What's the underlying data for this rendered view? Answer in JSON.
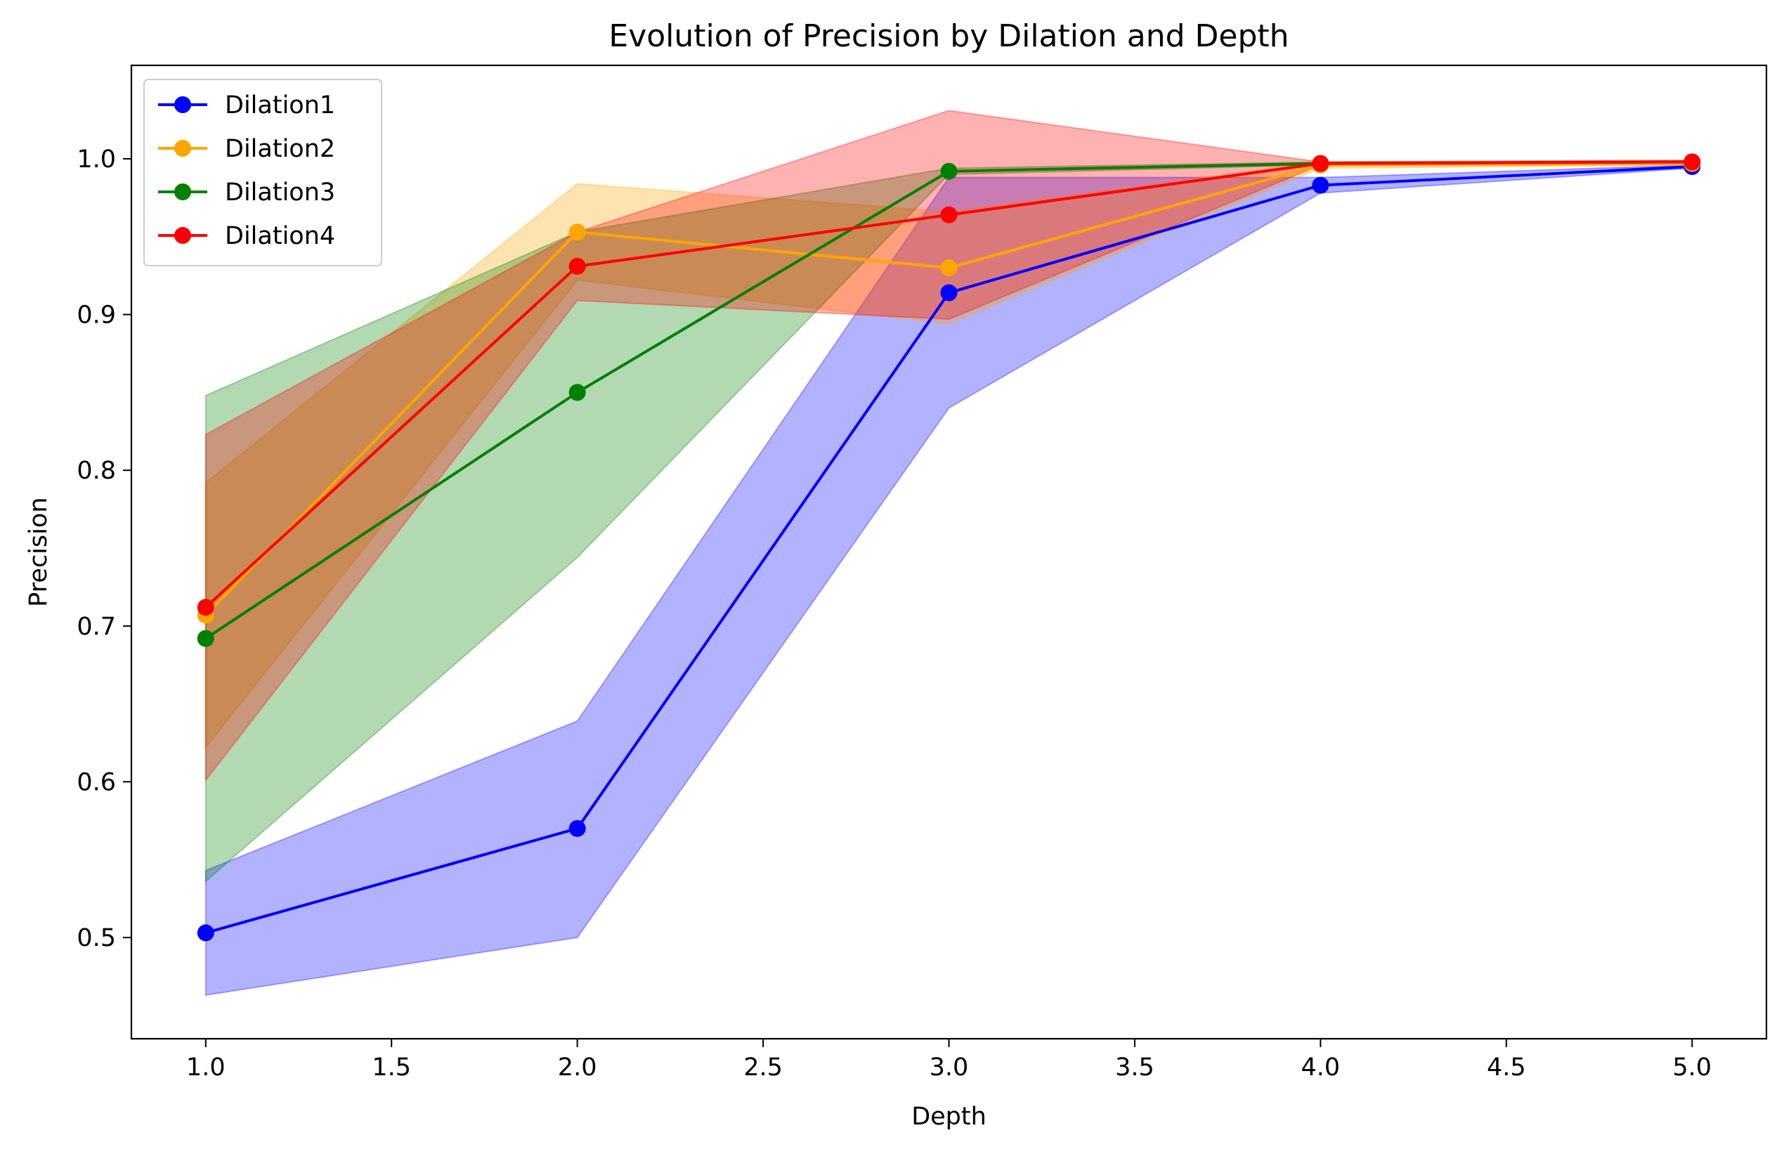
{
  "chart_data": {
    "type": "line",
    "title": "Evolution of Precision by Dilation and Depth",
    "xlabel": "Depth",
    "ylabel": "Precision",
    "xlim": [
      0.8,
      5.2
    ],
    "ylim": [
      0.435,
      1.06
    ],
    "xticks": [
      1.0,
      1.5,
      2.0,
      2.5,
      3.0,
      3.5,
      4.0,
      4.5,
      5.0
    ],
    "xtick_labels": [
      "1.0",
      "1.5",
      "2.0",
      "2.5",
      "3.0",
      "3.5",
      "4.0",
      "4.5",
      "5.0"
    ],
    "yticks": [
      0.5,
      0.6,
      0.7,
      0.8,
      0.9,
      1.0
    ],
    "ytick_labels": [
      "0.5",
      "0.6",
      "0.7",
      "0.8",
      "0.9",
      "1.0"
    ],
    "grid": false,
    "legend_position": "upper-left",
    "x": [
      1,
      2,
      3,
      4,
      5
    ],
    "series": [
      {
        "name": "Dilation1",
        "color": "#0000ff",
        "values": [
          0.503,
          0.57,
          0.914,
          0.983,
          0.995
        ],
        "lower": [
          0.463,
          0.5,
          0.84,
          0.978,
          0.994
        ],
        "upper": [
          0.543,
          0.639,
          0.988,
          0.988,
          0.996
        ]
      },
      {
        "name": "Dilation2",
        "color": "#ffa500",
        "values": [
          0.707,
          0.953,
          0.93,
          0.996,
          0.997
        ],
        "lower": [
          0.622,
          0.922,
          0.894,
          0.994,
          0.996
        ],
        "upper": [
          0.792,
          0.984,
          0.966,
          0.998,
          0.998
        ]
      },
      {
        "name": "Dilation3",
        "color": "#008000",
        "values": [
          0.692,
          0.85,
          0.992,
          0.997,
          0.998
        ],
        "lower": [
          0.536,
          0.744,
          0.99,
          0.996,
          0.997
        ],
        "upper": [
          0.848,
          0.953,
          0.994,
          0.998,
          0.999
        ]
      },
      {
        "name": "Dilation4",
        "color": "#ff0000",
        "values": [
          0.712,
          0.931,
          0.964,
          0.997,
          0.998
        ],
        "lower": [
          0.601,
          0.909,
          0.897,
          0.996,
          0.997
        ],
        "upper": [
          0.823,
          0.953,
          1.031,
          0.998,
          0.999
        ]
      }
    ]
  }
}
